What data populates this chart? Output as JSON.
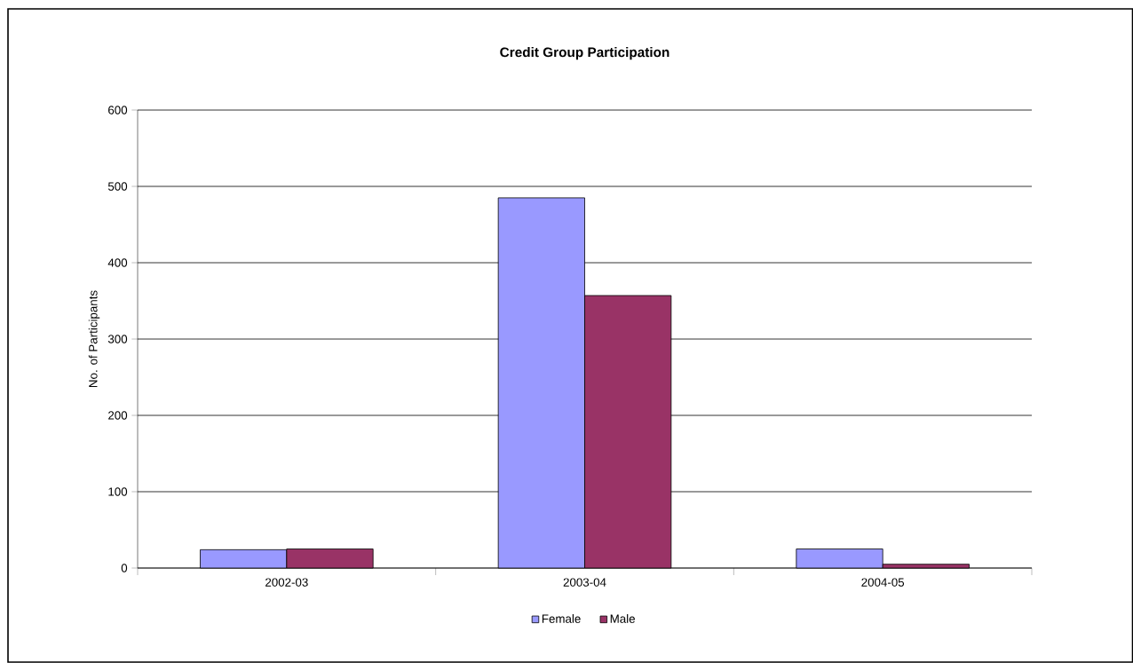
{
  "chart_data": {
    "type": "bar",
    "title": "Credit Group Participation",
    "ylabel": "No. of Participants",
    "categories": [
      "2002-03",
      "2003-04",
      "2004-05"
    ],
    "series": [
      {
        "name": "Female",
        "color": "#9999ff",
        "values": [
          24,
          485,
          25
        ]
      },
      {
        "name": "Male",
        "color": "#993366",
        "values": [
          25,
          357,
          5
        ]
      }
    ],
    "ylim": [
      0,
      600
    ],
    "yticks": [
      0,
      100,
      200,
      300,
      400,
      500,
      600
    ],
    "grid": "y",
    "legend": "bottom"
  }
}
